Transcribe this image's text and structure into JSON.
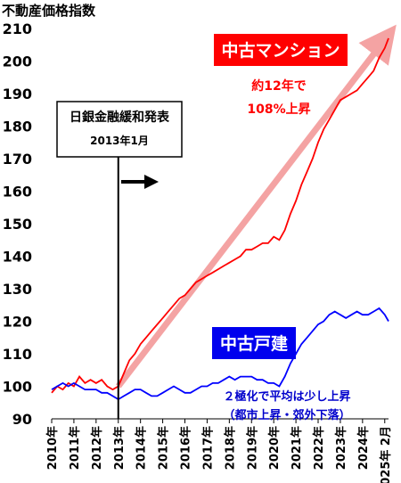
{
  "chart_data": {
    "type": "line",
    "title": "不動産価格指数",
    "ylim": [
      90,
      210
    ],
    "y_ticks": [
      90,
      100,
      110,
      120,
      130,
      140,
      150,
      160,
      170,
      180,
      190,
      200,
      210
    ],
    "x_ticks": [
      "2010年",
      "2011年",
      "2012年",
      "2013年",
      "2014年",
      "2015年",
      "2016年",
      "2017年",
      "2018年",
      "2019年",
      "2020年",
      "2021年",
      "2022年",
      "2023年",
      "2024年",
      "2025年 2月"
    ],
    "xlim": [
      2010,
      2025.17
    ],
    "grid": false,
    "series": [
      {
        "name": "中古マンション",
        "color": "#ff0000",
        "points": [
          [
            2010.0,
            98
          ],
          [
            2010.25,
            100
          ],
          [
            2010.5,
            99
          ],
          [
            2010.75,
            101
          ],
          [
            2011.0,
            100
          ],
          [
            2011.25,
            103
          ],
          [
            2011.5,
            101
          ],
          [
            2011.75,
            102
          ],
          [
            2012.0,
            101
          ],
          [
            2012.25,
            102
          ],
          [
            2012.5,
            100
          ],
          [
            2012.75,
            99
          ],
          [
            2013.0,
            100
          ],
          [
            2013.25,
            104
          ],
          [
            2013.5,
            108
          ],
          [
            2013.75,
            110
          ],
          [
            2014.0,
            113
          ],
          [
            2014.25,
            115
          ],
          [
            2014.5,
            117
          ],
          [
            2014.75,
            119
          ],
          [
            2015.0,
            121
          ],
          [
            2015.25,
            123
          ],
          [
            2015.5,
            125
          ],
          [
            2015.75,
            127
          ],
          [
            2016.0,
            128
          ],
          [
            2016.25,
            130
          ],
          [
            2016.5,
            132
          ],
          [
            2016.75,
            133
          ],
          [
            2017.0,
            134
          ],
          [
            2017.25,
            135
          ],
          [
            2017.5,
            136
          ],
          [
            2017.75,
            137
          ],
          [
            2018.0,
            138
          ],
          [
            2018.25,
            139
          ],
          [
            2018.5,
            140
          ],
          [
            2018.75,
            142
          ],
          [
            2019.0,
            142
          ],
          [
            2019.25,
            143
          ],
          [
            2019.5,
            144
          ],
          [
            2019.75,
            144
          ],
          [
            2020.0,
            146
          ],
          [
            2020.25,
            145
          ],
          [
            2020.5,
            148
          ],
          [
            2020.75,
            153
          ],
          [
            2021.0,
            157
          ],
          [
            2021.25,
            162
          ],
          [
            2021.5,
            166
          ],
          [
            2021.75,
            170
          ],
          [
            2022.0,
            175
          ],
          [
            2022.25,
            179
          ],
          [
            2022.5,
            182
          ],
          [
            2022.75,
            185
          ],
          [
            2023.0,
            188
          ],
          [
            2023.25,
            189
          ],
          [
            2023.5,
            190
          ],
          [
            2023.75,
            191
          ],
          [
            2024.0,
            193
          ],
          [
            2024.25,
            195
          ],
          [
            2024.5,
            197
          ],
          [
            2024.75,
            201
          ],
          [
            2025.0,
            204
          ],
          [
            2025.17,
            207
          ]
        ]
      },
      {
        "name": "中古戸建",
        "color": "#0000ff",
        "points": [
          [
            2010.0,
            99
          ],
          [
            2010.25,
            100
          ],
          [
            2010.5,
            101
          ],
          [
            2010.75,
            100
          ],
          [
            2011.0,
            101
          ],
          [
            2011.25,
            100
          ],
          [
            2011.5,
            99
          ],
          [
            2011.75,
            99
          ],
          [
            2012.0,
            99
          ],
          [
            2012.25,
            98
          ],
          [
            2012.5,
            98
          ],
          [
            2012.75,
            97
          ],
          [
            2013.0,
            96
          ],
          [
            2013.25,
            97
          ],
          [
            2013.5,
            98
          ],
          [
            2013.75,
            99
          ],
          [
            2014.0,
            99
          ],
          [
            2014.25,
            98
          ],
          [
            2014.5,
            97
          ],
          [
            2014.75,
            97
          ],
          [
            2015.0,
            98
          ],
          [
            2015.25,
            99
          ],
          [
            2015.5,
            100
          ],
          [
            2015.75,
            99
          ],
          [
            2016.0,
            98
          ],
          [
            2016.25,
            98
          ],
          [
            2016.5,
            99
          ],
          [
            2016.75,
            100
          ],
          [
            2017.0,
            100
          ],
          [
            2017.25,
            101
          ],
          [
            2017.5,
            101
          ],
          [
            2017.75,
            102
          ],
          [
            2018.0,
            103
          ],
          [
            2018.25,
            102
          ],
          [
            2018.5,
            103
          ],
          [
            2018.75,
            103
          ],
          [
            2019.0,
            103
          ],
          [
            2019.25,
            102
          ],
          [
            2019.5,
            102
          ],
          [
            2019.75,
            101
          ],
          [
            2020.0,
            101
          ],
          [
            2020.25,
            100
          ],
          [
            2020.5,
            103
          ],
          [
            2020.75,
            107
          ],
          [
            2021.0,
            110
          ],
          [
            2021.25,
            113
          ],
          [
            2021.5,
            115
          ],
          [
            2021.75,
            117
          ],
          [
            2022.0,
            119
          ],
          [
            2022.25,
            120
          ],
          [
            2022.5,
            122
          ],
          [
            2022.75,
            123
          ],
          [
            2023.0,
            122
          ],
          [
            2023.25,
            121
          ],
          [
            2023.5,
            122
          ],
          [
            2023.75,
            123
          ],
          [
            2024.0,
            122
          ],
          [
            2024.25,
            122
          ],
          [
            2024.5,
            123
          ],
          [
            2024.75,
            124
          ],
          [
            2025.0,
            122
          ],
          [
            2025.17,
            120
          ]
        ]
      }
    ],
    "annotations": {
      "event_title": "日銀金融緩和発表",
      "event_date": "2013年1月",
      "event_x": 2013.0,
      "mansion_tag": "中古マンション",
      "mansion_note_1": "約12年で",
      "mansion_note_2": "108%上昇",
      "house_tag": "中古戸建",
      "house_note_1": "２極化で平均は少し上昇",
      "house_note_2": "（都市上昇・郊外下落）"
    },
    "trend_arrow": {
      "from": [
        2013.0,
        100
      ],
      "to": [
        2025.17,
        208
      ]
    }
  }
}
